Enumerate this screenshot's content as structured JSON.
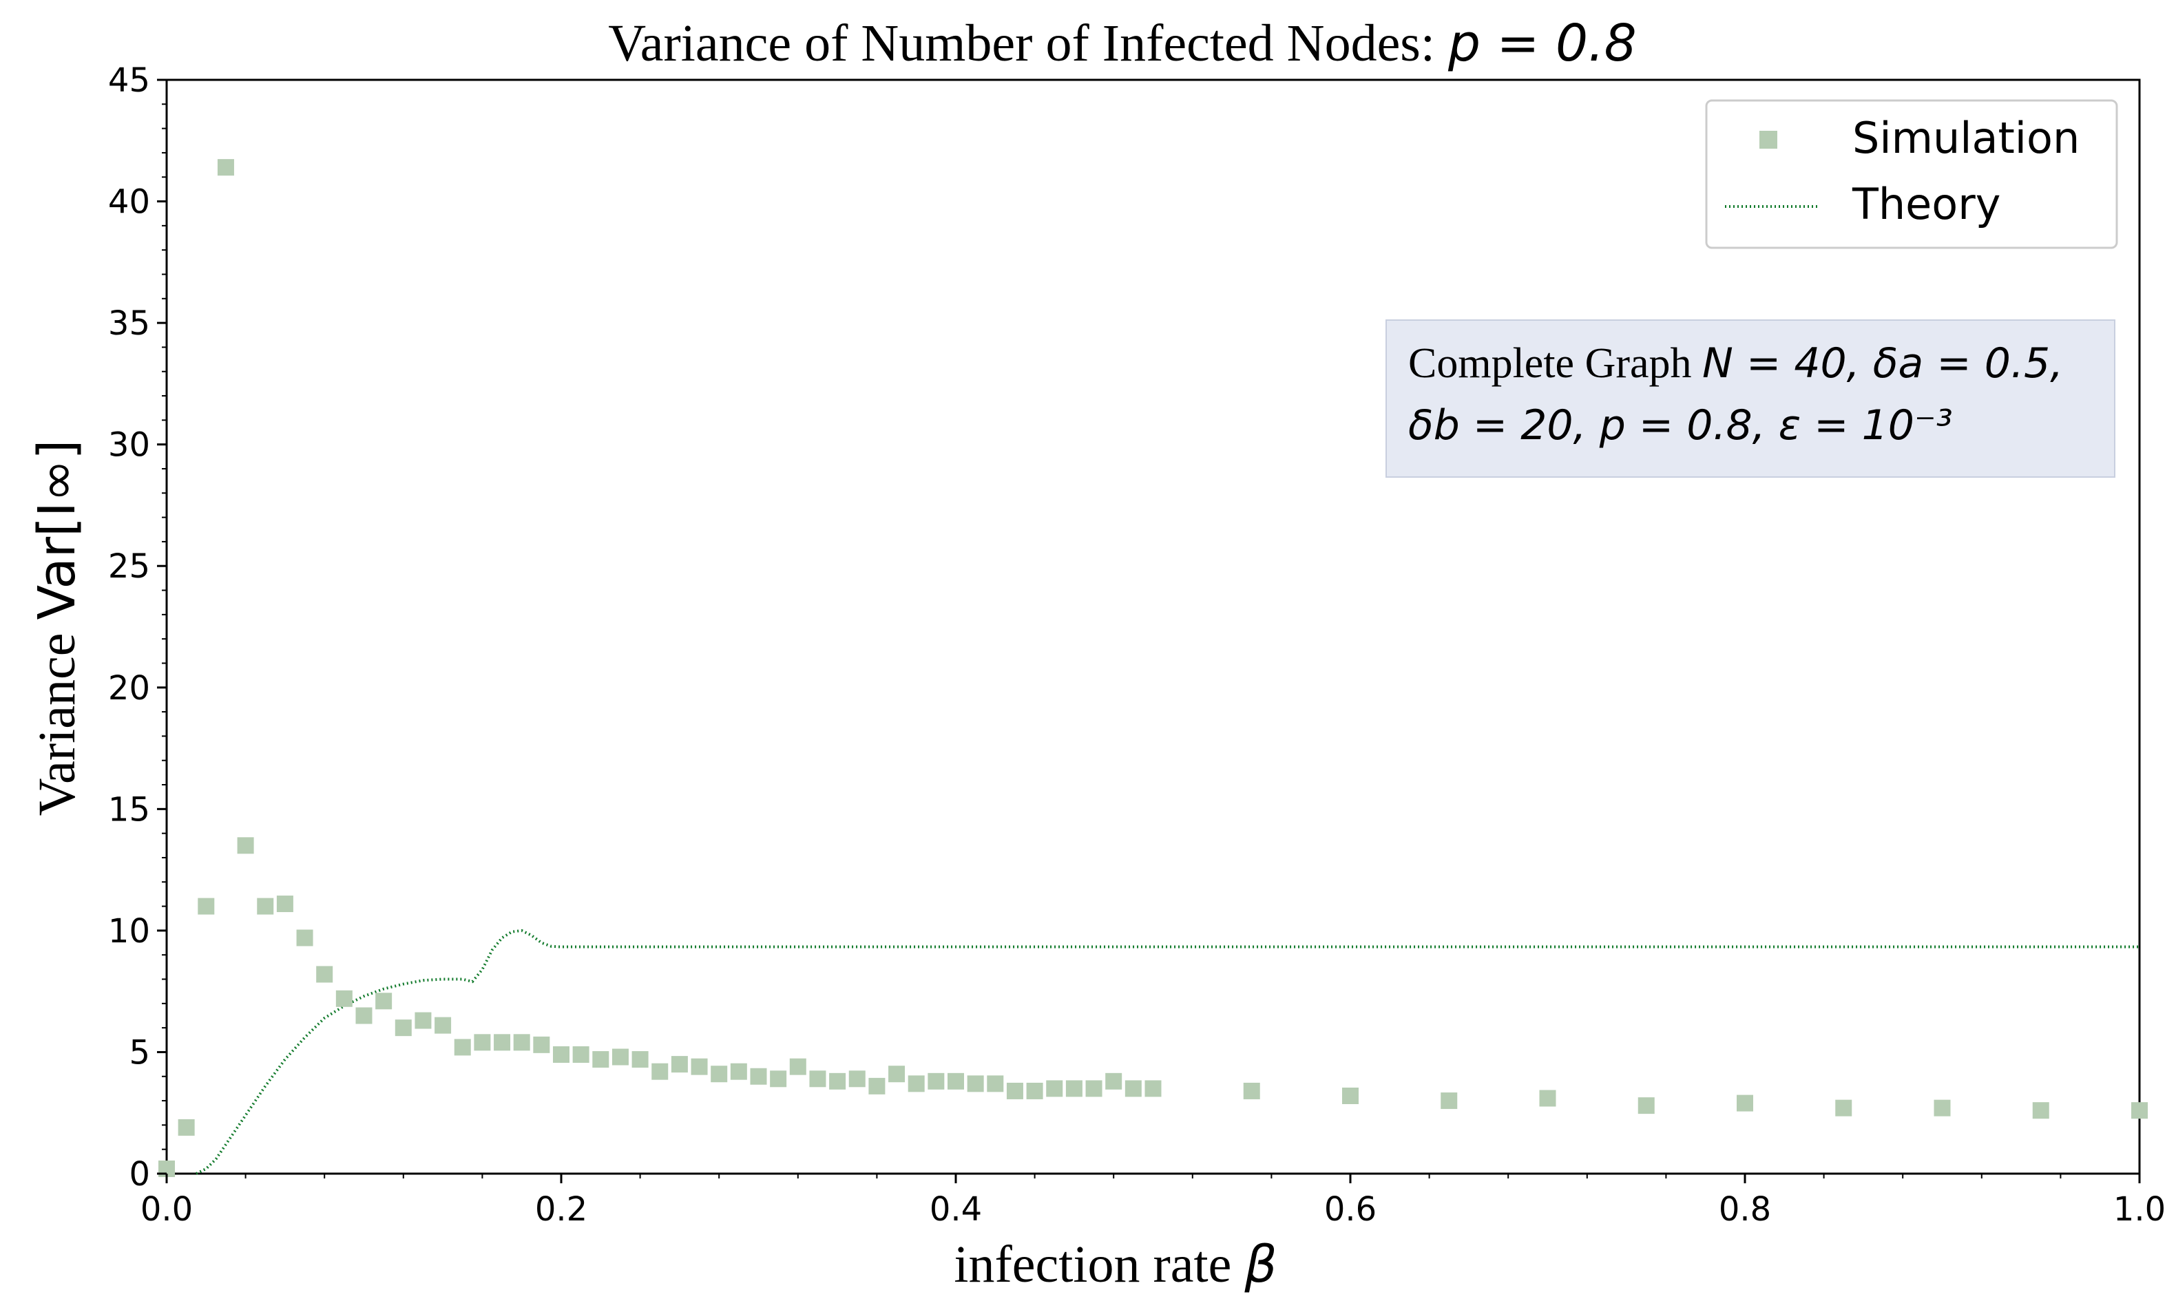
{
  "chart_data": {
    "type": "scatter",
    "title": "Variance of Number of Infected Nodes: ",
    "title_math": "p = 0.8",
    "xlabel": "infection rate ",
    "xlabel_math": "β",
    "ylabel": "Variance ",
    "ylabel_math": "Var[I∞]",
    "xlim": [
      0.0,
      1.0
    ],
    "ylim": [
      0,
      45
    ],
    "xticks": [
      0.0,
      0.2,
      0.4,
      0.6,
      0.8,
      1.0
    ],
    "xtick_labels": [
      "0.0",
      "0.2",
      "0.4",
      "0.6",
      "0.8",
      "1.0"
    ],
    "yticks": [
      0,
      5,
      10,
      15,
      20,
      25,
      30,
      35,
      40,
      45
    ],
    "ytick_labels": [
      "0",
      "5",
      "10",
      "15",
      "20",
      "25",
      "30",
      "35",
      "40",
      "45"
    ],
    "legend": {
      "position": "top-right",
      "entries": [
        "Simulation",
        "Theory"
      ]
    },
    "annotation": {
      "line1_text": "Complete Graph ",
      "line1_math": "N = 40, δa = 0.5,",
      "line2_math": "δb = 20, p = 0.8, ε = 10⁻³"
    },
    "colors": {
      "simulation": "#b5ccb2",
      "theory": "#117a2b",
      "annotation_bg": "#e5e9f3"
    },
    "series": [
      {
        "name": "Simulation",
        "style": "square-markers",
        "x": [
          0.0,
          0.01,
          0.02,
          0.03,
          0.04,
          0.05,
          0.06,
          0.07,
          0.08,
          0.09,
          0.1,
          0.11,
          0.12,
          0.13,
          0.14,
          0.15,
          0.16,
          0.17,
          0.18,
          0.19,
          0.2,
          0.21,
          0.22,
          0.23,
          0.24,
          0.25,
          0.26,
          0.27,
          0.28,
          0.29,
          0.3,
          0.31,
          0.32,
          0.33,
          0.34,
          0.35,
          0.36,
          0.37,
          0.38,
          0.39,
          0.4,
          0.41,
          0.42,
          0.43,
          0.44,
          0.45,
          0.46,
          0.47,
          0.48,
          0.49,
          0.5,
          0.55,
          0.6,
          0.65,
          0.7,
          0.75,
          0.8,
          0.85,
          0.9,
          0.95,
          1.0
        ],
        "y": [
          0.2,
          1.9,
          11.0,
          41.4,
          13.5,
          11.0,
          11.1,
          9.7,
          8.2,
          7.2,
          6.5,
          7.1,
          6.0,
          6.3,
          6.1,
          5.2,
          5.4,
          5.4,
          5.4,
          5.3,
          4.9,
          4.9,
          4.7,
          4.8,
          4.7,
          4.2,
          4.5,
          4.4,
          4.1,
          4.2,
          4.0,
          3.9,
          4.4,
          3.9,
          3.8,
          3.9,
          3.6,
          4.1,
          3.7,
          3.8,
          3.8,
          3.7,
          3.7,
          3.4,
          3.4,
          3.5,
          3.5,
          3.5,
          3.8,
          3.5,
          3.5,
          3.4,
          3.2,
          3.0,
          3.1,
          2.8,
          2.9,
          2.7,
          2.7,
          2.6,
          2.6
        ]
      },
      {
        "name": "Theory",
        "style": "dotted-line",
        "x": [
          0.015,
          0.02,
          0.025,
          0.03,
          0.04,
          0.05,
          0.06,
          0.07,
          0.08,
          0.09,
          0.1,
          0.11,
          0.12,
          0.13,
          0.14,
          0.15,
          0.155,
          0.16,
          0.165,
          0.17,
          0.175,
          0.18,
          0.185,
          0.19,
          0.195,
          0.2,
          0.3,
          0.4,
          0.5,
          0.6,
          0.7,
          0.8,
          0.9,
          1.0
        ],
        "y": [
          0.0,
          0.2,
          0.6,
          1.2,
          2.4,
          3.6,
          4.7,
          5.6,
          6.4,
          6.9,
          7.3,
          7.6,
          7.8,
          7.95,
          8.0,
          8.0,
          7.9,
          8.4,
          9.2,
          9.7,
          9.95,
          10.0,
          9.8,
          9.5,
          9.35,
          9.33,
          9.33,
          9.33,
          9.33,
          9.33,
          9.33,
          9.33,
          9.33,
          9.33
        ]
      }
    ]
  }
}
